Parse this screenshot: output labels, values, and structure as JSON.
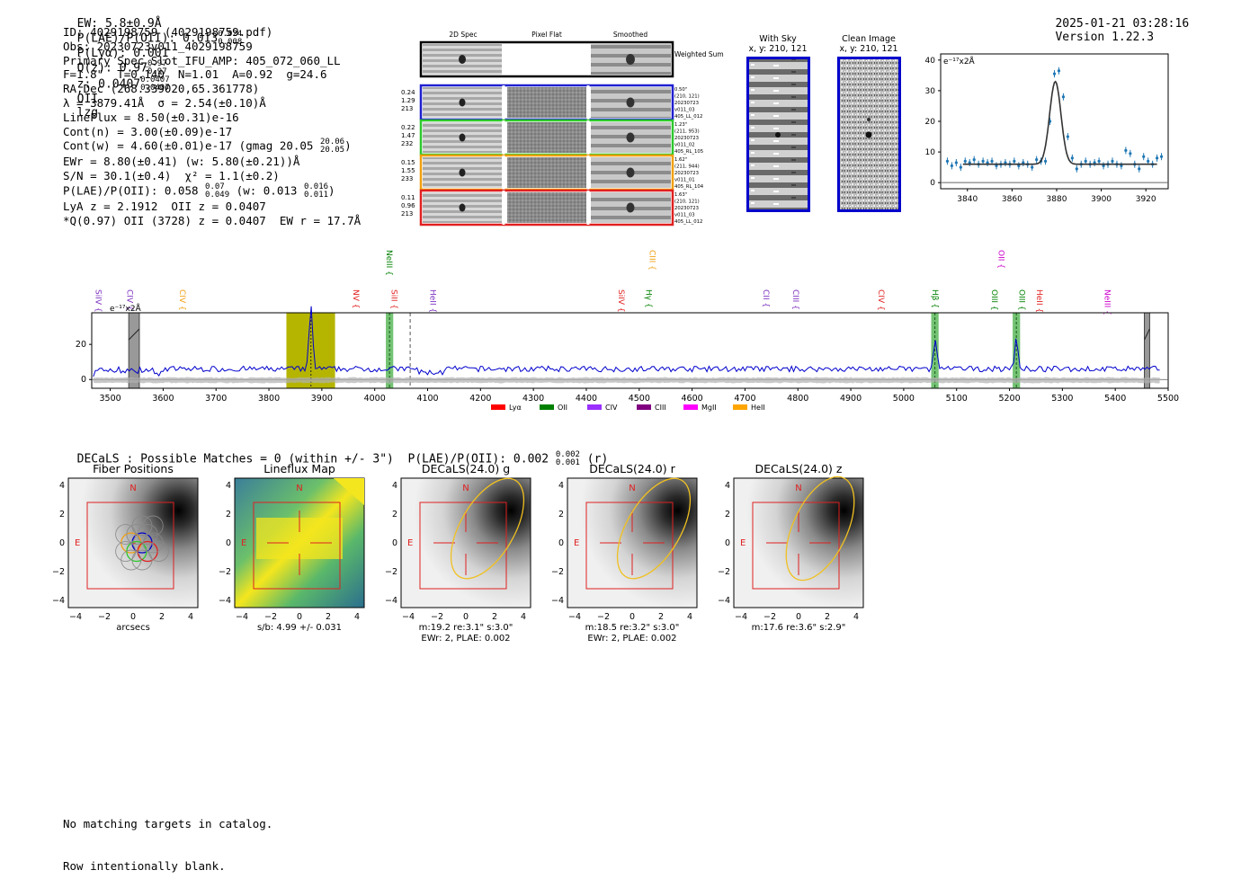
{
  "header": {
    "ew": "EW: 5.8±0.9Å",
    "plae_label": "P(LAE)/P(OII): 0.013",
    "plae_hi": "0.024",
    "plae_lo": "0.008",
    "plya": "P(Lyα): 0.001",
    "q_label": "Q(z): 0.97",
    "q_hi": "0.97",
    "q_lo": "0.97",
    "z_label": "z: 0.0407",
    "z_hi": "0.0407",
    "z_lo": "0.0407",
    "z_line": "OII",
    "tag": "lzg",
    "timestamp": "2025-01-21 03:28:16",
    "version": "Version 1.22.3"
  },
  "info": {
    "id": "ID: 4029198759 (4029198759.pdf)",
    "obs": "Obs: 20230723v011_4029198759",
    "primary": "Primary Spec_Slot_IFU_AMP: 405_072_060_LL",
    "params": "F=1.8\"  T=0.140  N=1.01  A=0.92  g=24.6",
    "radec": "RA,Dec (268.339020,65.361778)",
    "lambda": "λ = 3879.41Å  σ = 2.54(±0.10)Å",
    "lineflux": "LineFlux = 8.50(±0.31)e-16",
    "contn": "Cont(n) = 3.00(±0.09)e-17",
    "contw": "Cont(w) = 4.60(±0.01)e-17 (gmag 20.05",
    "contw_hi": "20.06",
    "contw_lo": "20.05",
    "ewr": "EWr = 8.80(±0.41) (w: 5.80(±0.21))Å",
    "sn": "S/N = 30.1(±0.4)  χ² = 1.1(±0.2)",
    "plae": "P(LAE)/P(OII): 0.058",
    "plae_hi": "0.07",
    "plae_lo": "0.049",
    "plae_w": "(w: 0.013",
    "plae_w_hi": "0.016",
    "plae_w_lo": "0.011",
    "lya": "LyA z = 2.1912  OII z = 0.0407",
    "q": "*Q(0.97) OII (3728) z = 0.0407  EW r = 17.7Å"
  },
  "cutouts": {
    "col_titles": [
      "2D Spec",
      "Pixel Flat",
      "Smoothed"
    ],
    "weighted_sum": "Weighted Sum",
    "rows": [
      {
        "left": [
          "0.24",
          "1.29",
          "213"
        ],
        "right": [
          "0.50\"",
          "(210, 121)",
          "20230723",
          "v011_03",
          "405_LL_012"
        ],
        "color": "#1f1fcf"
      },
      {
        "left": [
          "0.22",
          "1.47",
          "232"
        ],
        "right": [
          "1.23\"",
          "(211, 953)",
          "20230723",
          "v011_02",
          "405_RL_105"
        ],
        "color": "#2ec82e"
      },
      {
        "left": [
          "0.15",
          "1.55",
          "233"
        ],
        "right": [
          "1.62\"",
          "(211, 944)",
          "20230723",
          "v011_01",
          "405_RL_104"
        ],
        "color": "#f0a010"
      },
      {
        "left": [
          "0.11",
          "0.96",
          "213"
        ],
        "right": [
          "1.63\"",
          "(210, 121)",
          "20230723",
          "v011_03",
          "405_LL_012"
        ],
        "color": "#e02020"
      }
    ]
  },
  "sky": {
    "with_sky_title": "With Sky",
    "with_sky_coords": "x, y: 210, 121",
    "clean_title": "Clean Image",
    "clean_coords": "x, y: 210, 121"
  },
  "chart_data": [
    {
      "type": "scatter",
      "title": "",
      "unit_label": "e⁻¹⁷x2Å",
      "xlim": [
        3828,
        3930
      ],
      "ylim": [
        -2,
        42
      ],
      "xticks": [
        3840,
        3860,
        3880,
        3900,
        3920
      ],
      "yticks": [
        0,
        10,
        20,
        30,
        40
      ],
      "x": [
        3831,
        3833,
        3835,
        3837,
        3839,
        3841,
        3843,
        3845,
        3847,
        3849,
        3851,
        3853,
        3855,
        3857,
        3859,
        3861,
        3863,
        3865,
        3867,
        3869,
        3871,
        3873,
        3875,
        3877,
        3879,
        3881,
        3883,
        3885,
        3887,
        3889,
        3891,
        3893,
        3895,
        3897,
        3899,
        3901,
        3903,
        3905,
        3907,
        3909,
        3911,
        3913,
        3915,
        3917,
        3919,
        3921,
        3923,
        3925,
        3927
      ],
      "y": [
        7,
        5.5,
        6.5,
        5,
        7,
        6.5,
        7.5,
        6,
        7,
        6.5,
        7,
        5.5,
        6,
        6.5,
        6,
        7,
        5.5,
        6.5,
        6,
        5,
        7.5,
        7,
        7,
        20,
        35.5,
        36.5,
        28,
        15,
        8,
        4.5,
        6,
        7,
        6,
        6.5,
        7,
        5.5,
        6,
        7,
        6,
        5.5,
        10.5,
        9.5,
        6,
        4.5,
        8.5,
        7,
        6,
        8,
        8.5
      ],
      "fit_center": 3879.4,
      "fit_sigma": 2.54,
      "fit_continuum": 6,
      "fit_amplitude": 27
    },
    {
      "type": "line",
      "title": "",
      "unit_label": "e⁻¹⁷x2Å",
      "xlim": [
        3465,
        5500
      ],
      "ylim": [
        -5,
        38
      ],
      "xticks": [
        3500,
        3600,
        3700,
        3800,
        3900,
        4000,
        4100,
        4200,
        4300,
        4400,
        4500,
        4600,
        4700,
        4800,
        4900,
        5000,
        5100,
        5200,
        5300,
        5400,
        5500
      ],
      "yticks": [
        0,
        20
      ],
      "continuum": 6,
      "peaks": [
        {
          "x": 3879.4,
          "h": 36
        },
        {
          "x": 5060,
          "h": 16
        },
        {
          "x": 5213,
          "h": 17
        }
      ],
      "highlight_band": [
        3833,
        3925
      ],
      "green_bands": [
        [
          4021,
          4035
        ],
        [
          5052,
          5066
        ],
        [
          5206,
          5220
        ]
      ],
      "grey_bands": [
        [
          3535,
          3555
        ],
        [
          5455,
          5465
        ]
      ],
      "dashed_lines": [
        4067
      ],
      "line_labels": [
        {
          "name": "SiIV",
          "x": 3478,
          "color": "#7b2fbf",
          "tier": 1
        },
        {
          "name": "CIV",
          "x": 3537,
          "color": "#7b2fbf",
          "tier": 1
        },
        {
          "name": "CIV",
          "x": 3637,
          "color": "#f0a010",
          "tier": 1
        },
        {
          "name": "NV",
          "x": 3965,
          "color": "#e02020",
          "tier": 1
        },
        {
          "name": "NeIII",
          "x": 4028,
          "color": "#008000",
          "tier": 0
        },
        {
          "name": "SiII",
          "x": 4037,
          "color": "#e02020",
          "tier": 1
        },
        {
          "name": "HeII",
          "x": 4110,
          "color": "#7b2fbf",
          "tier": 1
        },
        {
          "name": "SiIV",
          "x": 4466,
          "color": "#e02020",
          "tier": 1
        },
        {
          "name": "CIII",
          "x": 4525,
          "color": "#f0a010",
          "tier": 0
        },
        {
          "name": "Hγ",
          "x": 4518,
          "color": "#008000",
          "tier": 1
        },
        {
          "name": "CII",
          "x": 4740,
          "color": "#7b2fbf",
          "tier": 1
        },
        {
          "name": "CIII",
          "x": 4796,
          "color": "#7b2fbf",
          "tier": 1
        },
        {
          "name": "CIV",
          "x": 4958,
          "color": "#e02020",
          "tier": 1
        },
        {
          "name": "Hβ",
          "x": 5060,
          "color": "#008000",
          "tier": 1
        },
        {
          "name": "OII",
          "x": 5185,
          "color": "#cc00cc",
          "tier": 0
        },
        {
          "name": "OIII",
          "x": 5172,
          "color": "#008000",
          "tier": 1
        },
        {
          "name": "OIII",
          "x": 5224,
          "color": "#008000",
          "tier": 1
        },
        {
          "name": "HeII",
          "x": 5257,
          "color": "#e02020",
          "tier": 1
        },
        {
          "name": "NeIII",
          "x": 5385,
          "color": "#cc00cc",
          "tier": 1
        }
      ],
      "legend": [
        {
          "name": "Lyα",
          "color": "#ff0000"
        },
        {
          "name": "OII",
          "color": "#008000"
        },
        {
          "name": "CIV",
          "color": "#9b30ff"
        },
        {
          "name": "CIII",
          "color": "#800080"
        },
        {
          "name": "MgII",
          "color": "#ff00ff"
        },
        {
          "name": "HeII",
          "color": "#ffa500"
        }
      ]
    }
  ],
  "decals": {
    "summary": "DECaLS : Possible Matches = 0 (within +/- 3\")  P(LAE)/P(OII): 0.002",
    "summary_hi": "0.002",
    "summary_lo": "0.001",
    "summary_band": "(r)",
    "ticks": [
      "−4",
      "−2",
      "0",
      "2",
      "4"
    ],
    "north": "N",
    "east": "E",
    "panels": [
      {
        "title": "Fiber Positions",
        "caption1": "arcsecs",
        "caption2": ""
      },
      {
        "title": "Lineflux Map",
        "caption1": "s/b: 4.99 +/- 0.031",
        "caption2": ""
      },
      {
        "title": "DECaLS(24.0) g",
        "caption1": "m:19.2  re:3.1\"  s:3.0\"",
        "caption2": "EWr: 2, PLAE: 0.002"
      },
      {
        "title": "DECaLS(24.0) r",
        "caption1": "m:18.5  re:3.2\"  s:3.0\"",
        "caption2": "EWr: 2, PLAE: 0.002"
      },
      {
        "title": "DECaLS(24.0) z",
        "caption1": "m:17.6  re:3.6\"  s:2.9\"",
        "caption2": ""
      }
    ]
  },
  "footer": {
    "line1": "No matching targets in catalog.",
    "line2": "Row intentionally blank."
  }
}
